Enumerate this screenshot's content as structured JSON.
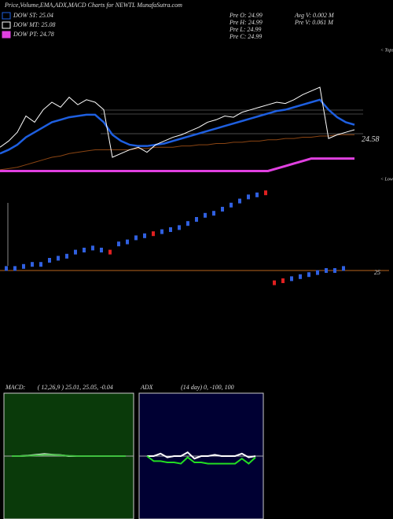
{
  "chart_data": [
    {
      "type": "line",
      "title": "Price,Volume,EMA,ADX,MACD Charts for NEWTL MunafaSutra.com",
      "legend": [
        "DOW ST: 25.04",
        "DOW MT: 25.08",
        "DOW PT: 24.78"
      ],
      "info": [
        "Pre  O: 24.99",
        "Pre  H: 24.99",
        "Pre  L: 24.99",
        "Pre  C: 24.99",
        "Avg V: 0.002  M",
        "Pre   V: 0.061  M"
      ],
      "side_labels": [
        "< Tops",
        "< Lows"
      ],
      "ylim": [
        24.2,
        25.3
      ],
      "yticks": [
        24.58
      ],
      "series": [
        {
          "name": "Price",
          "color": "#ffffff",
          "values": [
            24.5,
            24.55,
            24.62,
            24.75,
            24.7,
            24.8,
            24.86,
            24.82,
            24.9,
            24.84,
            24.88,
            24.86,
            24.8,
            24.42,
            24.45,
            24.48,
            24.5,
            24.46,
            24.52,
            24.55,
            24.58,
            24.6,
            24.63,
            24.66,
            24.7,
            24.72,
            24.75,
            24.74,
            24.78,
            24.8,
            24.82,
            24.84,
            24.86,
            24.85,
            24.88,
            24.92,
            24.95,
            24.98,
            24.57,
            24.6,
            24.62,
            24.64
          ]
        },
        {
          "name": "EMA",
          "color": "#1e5fe0",
          "values": [
            24.45,
            24.48,
            24.52,
            24.58,
            24.62,
            24.66,
            24.7,
            24.72,
            24.74,
            24.75,
            24.76,
            24.76,
            24.7,
            24.6,
            24.55,
            24.52,
            24.51,
            24.51,
            24.52,
            24.53,
            24.55,
            24.57,
            24.59,
            24.61,
            24.63,
            24.65,
            24.67,
            24.69,
            24.71,
            24.73,
            24.75,
            24.77,
            24.79,
            24.8,
            24.82,
            24.84,
            24.86,
            24.88,
            24.8,
            24.74,
            24.7,
            24.68
          ]
        },
        {
          "name": "Long",
          "color": "#8b4513",
          "values": [
            24.32,
            24.33,
            24.34,
            24.36,
            24.38,
            24.4,
            24.42,
            24.43,
            24.45,
            24.46,
            24.47,
            24.48,
            24.48,
            24.48,
            24.48,
            24.48,
            24.49,
            24.49,
            24.5,
            24.5,
            24.5,
            24.51,
            24.51,
            24.52,
            24.52,
            24.53,
            24.53,
            24.54,
            24.54,
            24.55,
            24.55,
            24.56,
            24.56,
            24.57,
            24.57,
            24.58,
            24.58,
            24.59,
            24.59,
            24.6,
            24.6,
            24.6
          ]
        },
        {
          "name": "PT",
          "color": "#e040e0",
          "values": [
            24.31,
            24.31,
            24.31,
            24.31,
            24.31,
            24.31,
            24.31,
            24.31,
            24.31,
            24.31,
            24.31,
            24.31,
            24.31,
            24.31,
            24.31,
            24.31,
            24.31,
            24.31,
            24.31,
            24.31,
            24.31,
            24.31,
            24.31,
            24.31,
            24.31,
            24.31,
            24.31,
            24.31,
            24.31,
            24.31,
            24.31,
            24.31,
            24.33,
            24.35,
            24.37,
            24.39,
            24.41,
            24.41,
            24.41,
            24.41,
            24.41,
            24.41
          ]
        }
      ]
    },
    {
      "type": "candle",
      "ylim": [
        24.9,
        25.4
      ],
      "yticks": [
        25
      ],
      "values": [
        25.01,
        25.01,
        25.02,
        25.03,
        25.03,
        25.05,
        25.06,
        25.07,
        25.09,
        25.1,
        25.11,
        25.1,
        25.09,
        25.13,
        25.14,
        25.16,
        25.17,
        25.18,
        25.19,
        25.2,
        25.21,
        25.23,
        25.25,
        25.27,
        25.28,
        25.3,
        25.32,
        25.34,
        25.36,
        25.37,
        25.38,
        24.94,
        24.95,
        24.96,
        24.97,
        24.98,
        24.99,
        25.0,
        25.0,
        25.01
      ]
    },
    {
      "type": "macd",
      "label": "MACD:",
      "params": "( 12,26,9 ) 25.01, 25.05, -0.04",
      "ylim": [
        -1,
        1
      ],
      "series": [
        {
          "name": "MACD",
          "color": "#ffffff",
          "values": [
            0,
            0,
            0.02,
            0.05,
            0.08,
            0.06,
            0.04,
            0,
            0,
            0,
            0,
            0,
            0,
            0,
            0
          ]
        },
        {
          "name": "Signal",
          "color": "#40c040",
          "values": [
            0,
            0,
            0.01,
            0.03,
            0.05,
            0.05,
            0.03,
            0.01,
            0,
            0,
            0,
            0,
            0,
            0,
            0
          ]
        }
      ]
    },
    {
      "type": "adx",
      "label": "ADX",
      "params": "(14  day) 0, -100, 100",
      "ylim": [
        -100,
        100
      ],
      "series": [
        {
          "name": "ADX",
          "color": "#ffffff",
          "values": [
            0,
            0,
            10,
            -5,
            0,
            0,
            15,
            -10,
            0,
            0,
            5,
            0,
            0,
            0,
            10,
            -5,
            0
          ]
        },
        {
          "name": "DI",
          "color": "#22dd22",
          "values": [
            0,
            -20,
            -20,
            -25,
            -25,
            -30,
            -5,
            -25,
            -25,
            -30,
            -30,
            -30,
            -30,
            -30,
            -10,
            -30,
            -5
          ]
        }
      ]
    }
  ]
}
